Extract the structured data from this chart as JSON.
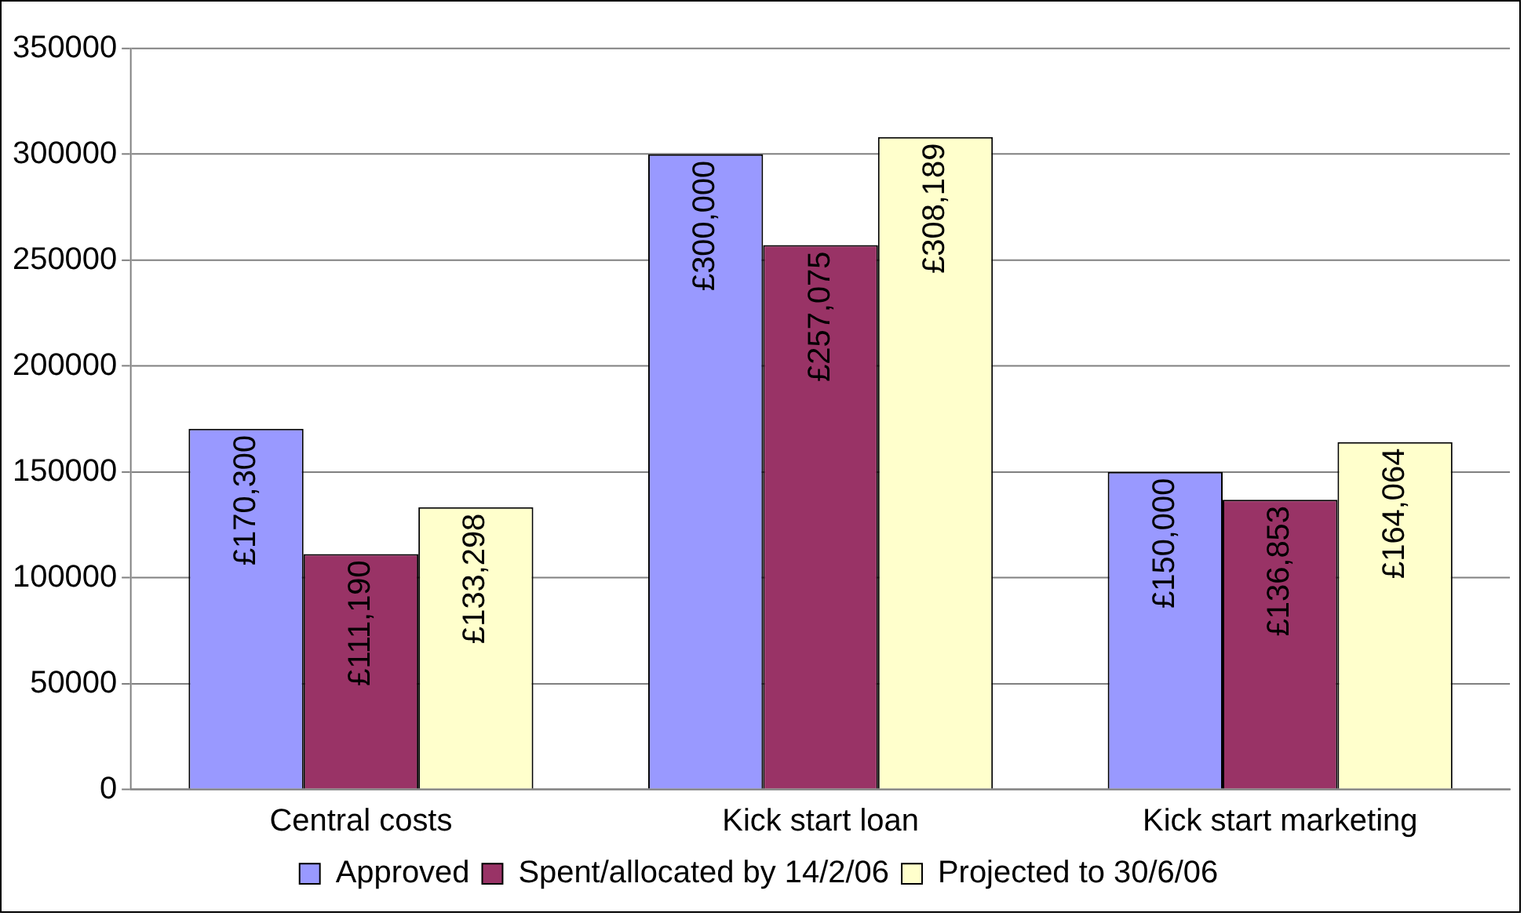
{
  "chart_data": {
    "type": "bar",
    "categories": [
      "Central costs",
      "Kick start loan",
      "Kick start marketing"
    ],
    "series": [
      {
        "name": "Approved",
        "color": "#9999ff",
        "values": [
          170300,
          300000,
          150000
        ],
        "value_labels": [
          "£170,300",
          "£300,000",
          "£150,000"
        ]
      },
      {
        "name": "Spent/allocated by 14/2/06",
        "color": "#993366",
        "values": [
          111190,
          257075,
          136853
        ],
        "value_labels": [
          "£111,190",
          "£257,075",
          "£136,853"
        ]
      },
      {
        "name": "Projected to 30/6/06",
        "color": "#ffffcc",
        "values": [
          133298,
          308189,
          164064
        ],
        "value_labels": [
          "£133,298",
          "£308,189",
          "£164,064"
        ]
      }
    ],
    "ylim": [
      0,
      350000
    ],
    "yticks": [
      0,
      50000,
      100000,
      150000,
      200000,
      250000,
      300000,
      350000
    ],
    "grid": "y",
    "legend": "bottom"
  }
}
